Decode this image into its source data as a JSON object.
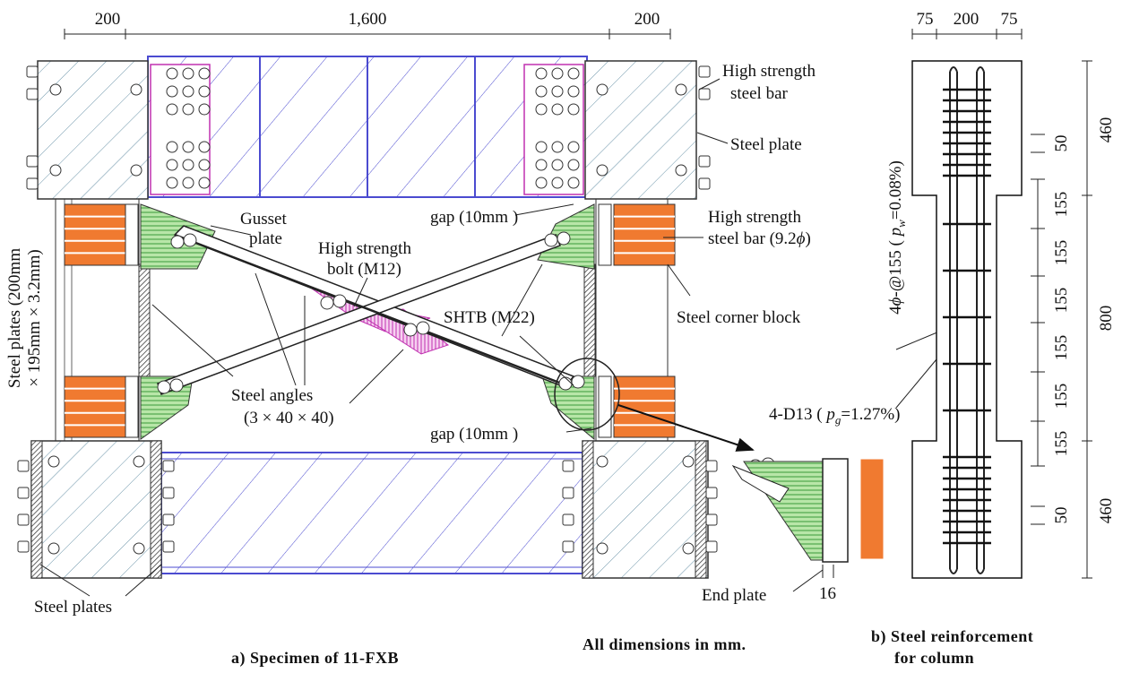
{
  "part_a": {
    "dimensions": [
      "200",
      "1,600",
      "200"
    ],
    "labels": {
      "high_strength_steel_bar": [
        "High strength",
        "steel bar"
      ],
      "steel_plate": "Steel plate",
      "gusset_plate": [
        "Gusset",
        "plate"
      ],
      "gap_top": "gap (10mm )",
      "high_strength_steel_bar_dia": [
        "High strength",
        "steel bar (9.2",
        "ϕ",
        ")"
      ],
      "high_strength_bolt": [
        "High strength",
        "bolt (M12)"
      ],
      "steel_plates_size": [
        "Steel plates (200mm",
        "× 195mm × 3.2mm)"
      ],
      "shtb": "SHTB (M22)",
      "steel_corner_block": "Steel corner block",
      "steel_angles": [
        "Steel angles",
        "(3 × 40 × 40)"
      ],
      "gap_bottom": "gap (10mm )",
      "steel_plates": "Steel plates",
      "end_plate": "End plate",
      "end_plate_dim": "16"
    },
    "caption": "a)  Specimen of 11-FXB"
  },
  "note": "All dimensions in mm.",
  "part_b": {
    "top_dimensions": [
      "75",
      "200",
      "75"
    ],
    "right_dimensions": [
      "460",
      "800",
      "460"
    ],
    "spacing_dimensions": [
      "50",
      "155",
      "155",
      "155",
      "155",
      "155",
      "155",
      "50"
    ],
    "stirrup_label": [
      "4",
      "ϕ",
      "-@155 ( ",
      "p",
      "w",
      "=0.08%)"
    ],
    "main_bar_label": [
      "4-D13 ( ",
      "p",
      "g",
      "=1.27%)"
    ],
    "caption": [
      "b)  Steel  reinforcement",
      "for column"
    ]
  }
}
